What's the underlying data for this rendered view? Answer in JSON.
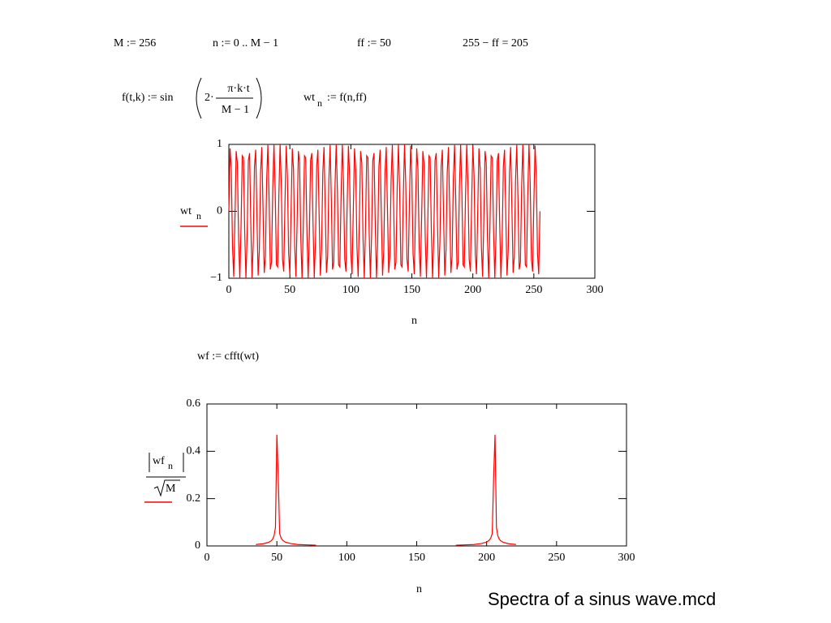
{
  "worksheet": {
    "definitions": [
      "M := 256",
      "n := 0 .. M − 1",
      "ff := 50",
      "255 − ff = 205"
    ],
    "function": {
      "lhs": "f(t,k) := sin",
      "factor": "2·",
      "numerator": "π·k·t",
      "denominator": "M − 1"
    },
    "assignment": {
      "name": "wt",
      "subscript": "n",
      "rhs": ":= f(n,ff)"
    },
    "fft": "wf := cfft(wt)"
  },
  "chart_data": [
    {
      "type": "line",
      "xlabel": "n",
      "ylabel": {
        "name": "wt",
        "subscript": "n"
      },
      "color": "#ff0000",
      "xlim": [
        0,
        300
      ],
      "xticks": [
        0,
        50,
        100,
        150,
        200,
        250,
        300
      ],
      "ylim": [
        -1,
        1
      ],
      "yticks": [
        {
          "value": -1,
          "label": "−1"
        },
        0,
        1
      ],
      "x": [
        0,
        1,
        2,
        3,
        4,
        5,
        6,
        7,
        8,
        9,
        10,
        11,
        12,
        13,
        14,
        15,
        16,
        17,
        18,
        19,
        20,
        21,
        22,
        23,
        24,
        25,
        26,
        27,
        28,
        29,
        30,
        31,
        32,
        33,
        34,
        35,
        36,
        37,
        38,
        39,
        40,
        41,
        42,
        43,
        44,
        45,
        46,
        47,
        48,
        49,
        50,
        51,
        52,
        53,
        54,
        55,
        56,
        57,
        58,
        59,
        60,
        61,
        62,
        63,
        64,
        65,
        66,
        67,
        68,
        69,
        70,
        71,
        72,
        73,
        74,
        75,
        76,
        77,
        78,
        79,
        80,
        81,
        82,
        83,
        84,
        85,
        86,
        87,
        88,
        89,
        90,
        91,
        92,
        93,
        94,
        95,
        96,
        97,
        98,
        99,
        100,
        101,
        102,
        103,
        104,
        105,
        106,
        107,
        108,
        109,
        110,
        111,
        112,
        113,
        114,
        115,
        116,
        117,
        118,
        119,
        120,
        121,
        122,
        123,
        124,
        125,
        126,
        127,
        128,
        129,
        130,
        131,
        132,
        133,
        134,
        135,
        136,
        137,
        138,
        139,
        140,
        141,
        142,
        143,
        144,
        145,
        146,
        147,
        148,
        149,
        150,
        151,
        152,
        153,
        154,
        155,
        156,
        157,
        158,
        159,
        160,
        161,
        162,
        163,
        164,
        165,
        166,
        167,
        168,
        169,
        170,
        171,
        172,
        173,
        174,
        175,
        176,
        177,
        178,
        179,
        180,
        181,
        182,
        183,
        184,
        185,
        186,
        187,
        188,
        189,
        190,
        191,
        192,
        193,
        194,
        195,
        196,
        197,
        198,
        199,
        200,
        201,
        202,
        203,
        204,
        205,
        206,
        207,
        208,
        209,
        210,
        211,
        212,
        213,
        214,
        215,
        216,
        217,
        218,
        219,
        220,
        221,
        222,
        223,
        224,
        225,
        226,
        227,
        228,
        229,
        230,
        231,
        232,
        233,
        234,
        235,
        236,
        237,
        238,
        239,
        240,
        241,
        242,
        243,
        244,
        245,
        246,
        247,
        248,
        249,
        250,
        251,
        252,
        253,
        254,
        255
      ],
      "values": [
        0,
        0.94,
        0.63,
        -0.53,
        -0.98,
        -0.12,
        0.9,
        0.72,
        -0.42,
        -1.0,
        -0.24,
        0.83,
        0.8,
        -0.3,
        -1.0,
        -0.36,
        0.76,
        0.87,
        -0.18,
        -0.99,
        -0.47,
        0.67,
        0.92,
        -0.06,
        -0.96,
        -0.58,
        0.58,
        0.96,
        0.06,
        -0.92,
        -0.67,
        0.47,
        0.99,
        0.18,
        -0.87,
        -0.76,
        0.36,
        1.0,
        0.3,
        -0.8,
        -0.83,
        0.24,
        1.0,
        0.42,
        -0.72,
        -0.9,
        0.12,
        0.98,
        0.53,
        -0.63,
        -0.94,
        0,
        0.94,
        0.63,
        -0.53,
        -0.98,
        -0.12,
        0.9,
        0.72,
        -0.42,
        -1.0,
        -0.24,
        0.83,
        0.8,
        -0.3,
        -1.0,
        -0.36,
        0.76,
        0.87,
        -0.18,
        -0.99,
        -0.47,
        0.67,
        0.92,
        -0.06,
        -0.96,
        -0.58,
        0.58,
        0.96,
        0.06,
        -0.92,
        -0.67,
        0.47,
        0.99,
        0.18,
        -0.87,
        -0.76,
        0.36,
        1.0,
        0.3,
        -0.8,
        -0.83,
        0.24,
        1.0,
        0.42,
        -0.72,
        -0.9,
        0.12,
        0.98,
        0.53,
        -0.63,
        -0.94,
        0,
        0.94,
        0.63,
        -0.53,
        -0.98,
        -0.12,
        0.9,
        0.72,
        -0.42,
        -1.0,
        -0.24,
        0.83,
        0.8,
        -0.3,
        -1.0,
        -0.36,
        0.76,
        0.87,
        -0.18,
        -0.99,
        -0.47,
        0.67,
        0.92,
        -0.06,
        -0.96,
        -0.58,
        0.58,
        0.96,
        0.06,
        -0.92,
        -0.67,
        0.47,
        0.99,
        0.18,
        -0.87,
        -0.76,
        0.36,
        1.0,
        0.3,
        -0.8,
        -0.83,
        0.24,
        1.0,
        0.42,
        -0.72,
        -0.9,
        0.12,
        0.98,
        0.53,
        -0.63,
        -0.94,
        0,
        0.94,
        0.63,
        -0.53,
        -0.98,
        -0.12,
        0.9,
        0.72,
        -0.42,
        -1.0,
        -0.24,
        0.83,
        0.8,
        -0.3,
        -1.0,
        -0.36,
        0.76,
        0.87,
        -0.18,
        -0.99,
        -0.47,
        0.67,
        0.92,
        -0.06,
        -0.96,
        -0.58,
        0.58,
        0.96,
        0.06,
        -0.92,
        -0.67,
        0.47,
        0.99,
        0.18,
        -0.87,
        -0.76,
        0.36,
        1.0,
        0.3,
        -0.8,
        -0.83,
        0.24,
        1.0,
        0.42,
        -0.72,
        -0.9,
        0.12,
        0.98,
        0.53,
        -0.63,
        -0.94,
        0,
        0.94,
        0.63,
        -0.53,
        -0.98,
        -0.12,
        0.9,
        0.72,
        -0.42,
        -1.0,
        -0.24,
        0.83,
        0.8,
        -0.3,
        -1.0,
        -0.36,
        0.76,
        0.87,
        -0.18,
        -0.99,
        -0.47,
        0.67,
        0.92,
        -0.06,
        -0.96,
        -0.58,
        0.58,
        0.96,
        0.06,
        -0.92,
        -0.67,
        0.47,
        0.99,
        0.18,
        -0.87,
        -0.76,
        0.36,
        1.0,
        0.3,
        -0.8,
        -0.83,
        0.24,
        1.0,
        0.42,
        -0.72,
        -0.9,
        0.12,
        0.98,
        0.53,
        -0.63,
        -0.94,
        0
      ]
    },
    {
      "type": "line",
      "xlabel": "n",
      "ylabel": {
        "name": "wf",
        "subscript": "n",
        "denominator": "M"
      },
      "color": "#ff0000",
      "xlim": [
        0,
        300
      ],
      "xticks": [
        0,
        50,
        100,
        150,
        200,
        250,
        300
      ],
      "ylim": [
        0,
        0.6
      ],
      "yticks": [
        0,
        0.2,
        0.4,
        0.6
      ],
      "x": [
        35,
        40,
        44,
        46,
        47,
        48,
        49,
        50,
        51,
        52,
        53,
        54,
        56,
        60,
        65,
        70,
        78,
        128,
        178,
        186,
        191,
        196,
        200,
        202,
        203,
        204,
        205,
        206,
        207,
        208,
        209,
        210,
        212,
        216,
        221
      ],
      "values": [
        0.006,
        0.009,
        0.015,
        0.022,
        0.029,
        0.043,
        0.078,
        0.47,
        0.29,
        0.052,
        0.034,
        0.025,
        0.016,
        0.01,
        0.006,
        0.005,
        0.003,
        null,
        0.003,
        0.005,
        0.006,
        0.01,
        0.016,
        0.025,
        0.034,
        0.052,
        0.29,
        0.47,
        0.078,
        0.043,
        0.029,
        0.022,
        0.015,
        0.009,
        0.006
      ]
    }
  ],
  "caption": "Spectra of a sinus wave.mcd"
}
